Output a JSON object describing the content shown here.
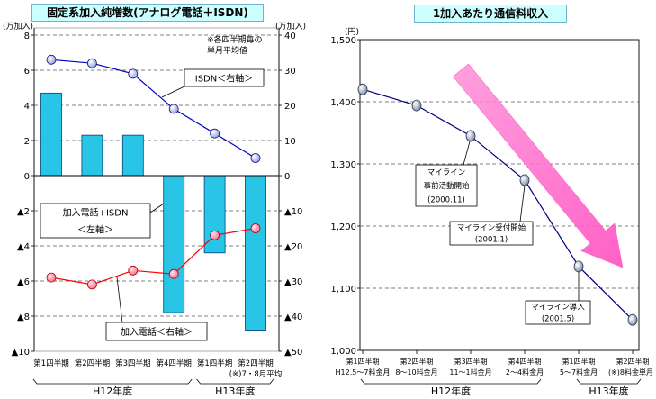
{
  "chart_data": [
    {
      "type": "bar",
      "title": "固定系加入純増数(アナログ電話＋ISDN)",
      "note": [
        "※各四半期毎の",
        "単月平均値"
      ],
      "left_axis": {
        "unit": "(万加入)",
        "range": [
          -10,
          8
        ],
        "ticks": [
          {
            "value": 8,
            "label": "8"
          },
          {
            "value": 6,
            "label": "6"
          },
          {
            "value": 4,
            "label": "4"
          },
          {
            "value": 2,
            "label": "2"
          },
          {
            "value": 0,
            "label": "0"
          },
          {
            "value": -2,
            "label": "▲2"
          },
          {
            "value": -4,
            "label": "▲4"
          },
          {
            "value": -6,
            "label": "▲6"
          },
          {
            "value": -8,
            "label": "▲8"
          },
          {
            "value": -10,
            "label": "▲10"
          }
        ]
      },
      "right_axis": {
        "unit": "(万加入)",
        "range": [
          -50,
          40
        ],
        "ticks": [
          {
            "value": 40,
            "label": "40"
          },
          {
            "value": 30,
            "label": "30"
          },
          {
            "value": 20,
            "label": "20"
          },
          {
            "value": 10,
            "label": "10"
          },
          {
            "value": 0,
            "label": "0"
          },
          {
            "value": -10,
            "label": "▲10"
          },
          {
            "value": -20,
            "label": "▲20"
          },
          {
            "value": -30,
            "label": "▲30"
          },
          {
            "value": -40,
            "label": "▲40"
          },
          {
            "value": -50,
            "label": "▲50"
          }
        ]
      },
      "categories": [
        "第1四半期",
        "第2四半期",
        "第3四半期",
        "第4四半期",
        "第1四半期",
        "第2四半期"
      ],
      "category_note": "(※)7・8月平均",
      "fiscal_years": [
        {
          "label": "H12年度",
          "categories": [
            0,
            1,
            2,
            3
          ]
        },
        {
          "label": "H13年度",
          "categories": [
            4,
            5
          ]
        }
      ],
      "grid": true,
      "series": [
        {
          "kind": "bar",
          "axis": "left",
          "name_lines": [
            "加入電話+ISDN",
            "＜左軸＞"
          ],
          "values": [
            4.7,
            2.3,
            2.3,
            -7.8,
            -4.4,
            -8.8
          ],
          "color": "#29c5e6"
        },
        {
          "kind": "line",
          "axis": "right",
          "name_lines": [
            "ISDN＜右軸＞"
          ],
          "values": [
            33,
            32,
            29,
            19,
            12,
            5
          ],
          "color": "#0000cc"
        },
        {
          "kind": "line",
          "axis": "right",
          "name_lines": [
            "加入電話＜右軸＞"
          ],
          "values": [
            -29,
            -31,
            -27,
            -28,
            -17,
            -15
          ],
          "color": "#ff0000"
        }
      ]
    },
    {
      "type": "line",
      "title": "1加入あたり通信料収入",
      "y_axis": {
        "unit": "(円)",
        "range": [
          1000,
          1500
        ],
        "ticks": [
          {
            "value": 1500,
            "label": "1,500"
          },
          {
            "value": 1400,
            "label": "1,400"
          },
          {
            "value": 1300,
            "label": "1,300"
          },
          {
            "value": 1200,
            "label": "1,200"
          },
          {
            "value": 1100,
            "label": "1,100"
          },
          {
            "value": 1000,
            "label": "1,000"
          }
        ]
      },
      "categories": [
        {
          "period": "第1四半期",
          "months": "H12.5～7料金月"
        },
        {
          "period": "第2四半期",
          "months": "8～10料金月"
        },
        {
          "period": "第3四半期",
          "months": "11～1料金月"
        },
        {
          "period": "第4四半期",
          "months": "2～4料金月"
        },
        {
          "period": "第1四半期",
          "months": "5～7料金月"
        },
        {
          "period": "第2四半期",
          "months": "(※)8料金単月"
        }
      ],
      "fiscal_years": [
        {
          "label": "H12年度",
          "categories": [
            0,
            1,
            2,
            3
          ]
        },
        {
          "label": "H13年度",
          "categories": [
            4,
            5
          ]
        }
      ],
      "grid": true,
      "series": [
        {
          "values": [
            1420,
            1394,
            1345,
            1274,
            1135,
            1049
          ],
          "color": "#000080"
        }
      ],
      "annotations": [
        {
          "category": 2,
          "lines": [
            "マイライン",
            "事前活動開始",
            "(2000.11)"
          ]
        },
        {
          "category": 3,
          "lines": [
            "マイライン受付開始",
            "(2001.1)"
          ]
        },
        {
          "category": 4,
          "lines": [
            "マイライン導入",
            "(2001.5)"
          ]
        }
      ],
      "trend_arrow_color": "#ff66cc"
    }
  ]
}
